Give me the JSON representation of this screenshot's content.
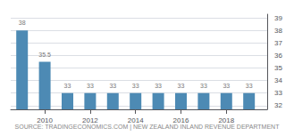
{
  "chart_data": {
    "type": "bar",
    "x": [
      2009,
      2010,
      2011,
      2012,
      2013,
      2014,
      2015,
      2016,
      2017,
      2018,
      2019
    ],
    "values": [
      38,
      35.5,
      33,
      33,
      33,
      33,
      33,
      33,
      33,
      33,
      33
    ],
    "color": "#4d8ab4",
    "xlim": [
      2008.5,
      2019.8
    ],
    "xticks": [
      2010,
      2012,
      2014,
      2016,
      2018
    ],
    "ylim": [
      31.7,
      39.3
    ],
    "yticks": [
      32,
      33,
      34,
      35,
      36,
      37,
      38,
      39
    ],
    "grid": true,
    "data_labels": true,
    "annotations": [
      "SOURCE: TRADINGECONOMICS.COM | NEW ZEALAND INLAND REVENUE DEPARTMENT"
    ]
  }
}
